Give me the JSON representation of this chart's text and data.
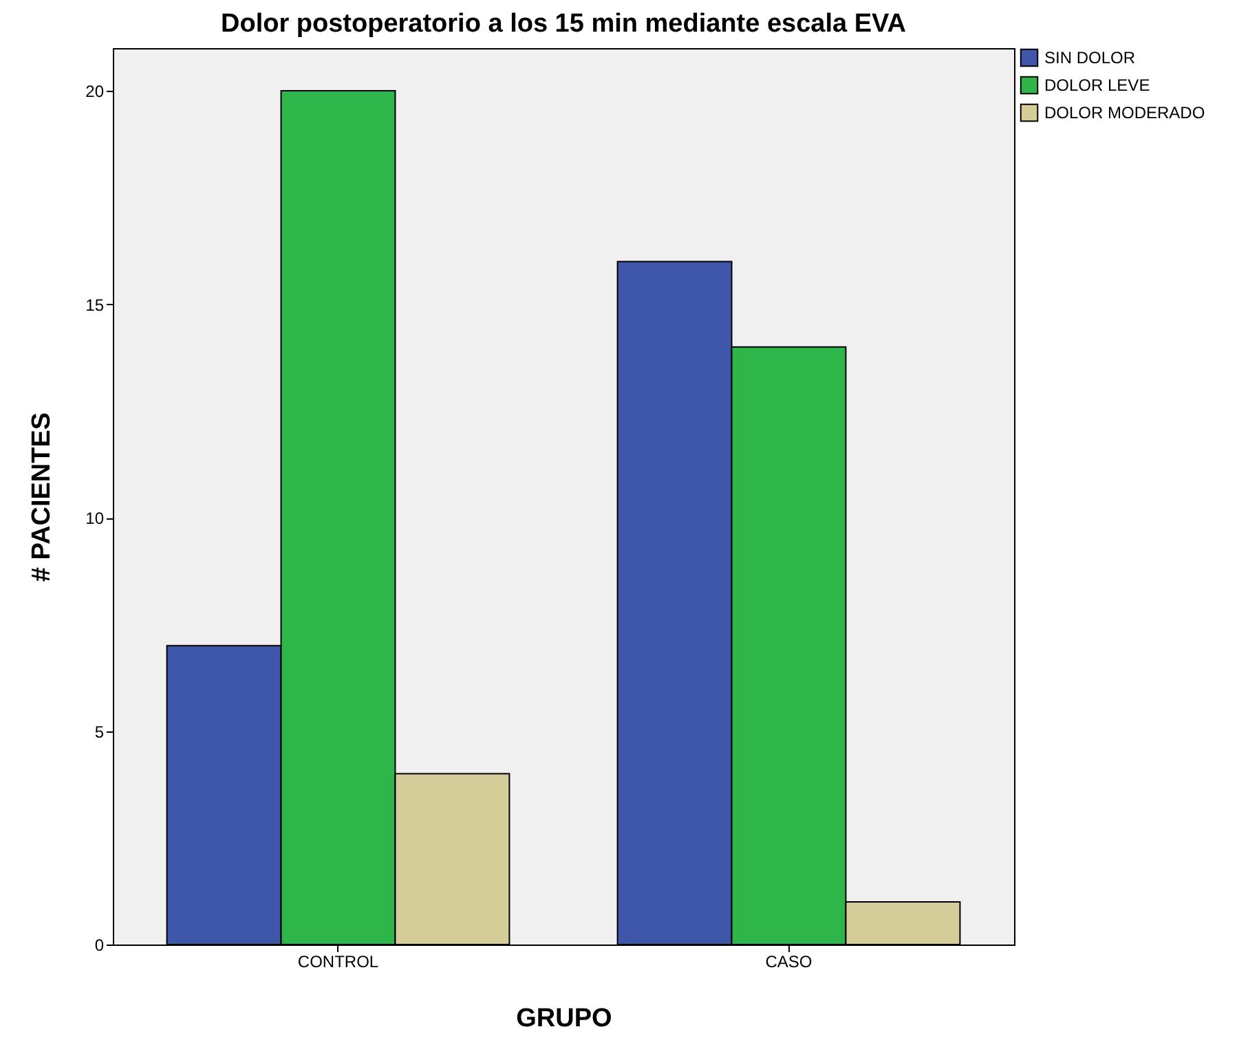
{
  "chart_data": {
    "type": "bar",
    "title": "Dolor postoperatorio a los 15 min mediante escala EVA",
    "xlabel": "GRUPO",
    "ylabel": "# PACIENTES",
    "categories": [
      "CONTROL",
      "CASO"
    ],
    "series": [
      {
        "name": "SIN DOLOR",
        "color": "#3f57ab",
        "values": [
          7,
          16
        ]
      },
      {
        "name": "DOLOR LEVE",
        "color": "#2eb64a",
        "values": [
          20,
          14
        ]
      },
      {
        "name": "DOLOR MODERADO",
        "color": "#d4cd99",
        "values": [
          4,
          1
        ]
      }
    ],
    "ylim": [
      0,
      21
    ],
    "yticks": [
      0,
      5,
      10,
      15,
      20
    ],
    "legend": "top right"
  }
}
